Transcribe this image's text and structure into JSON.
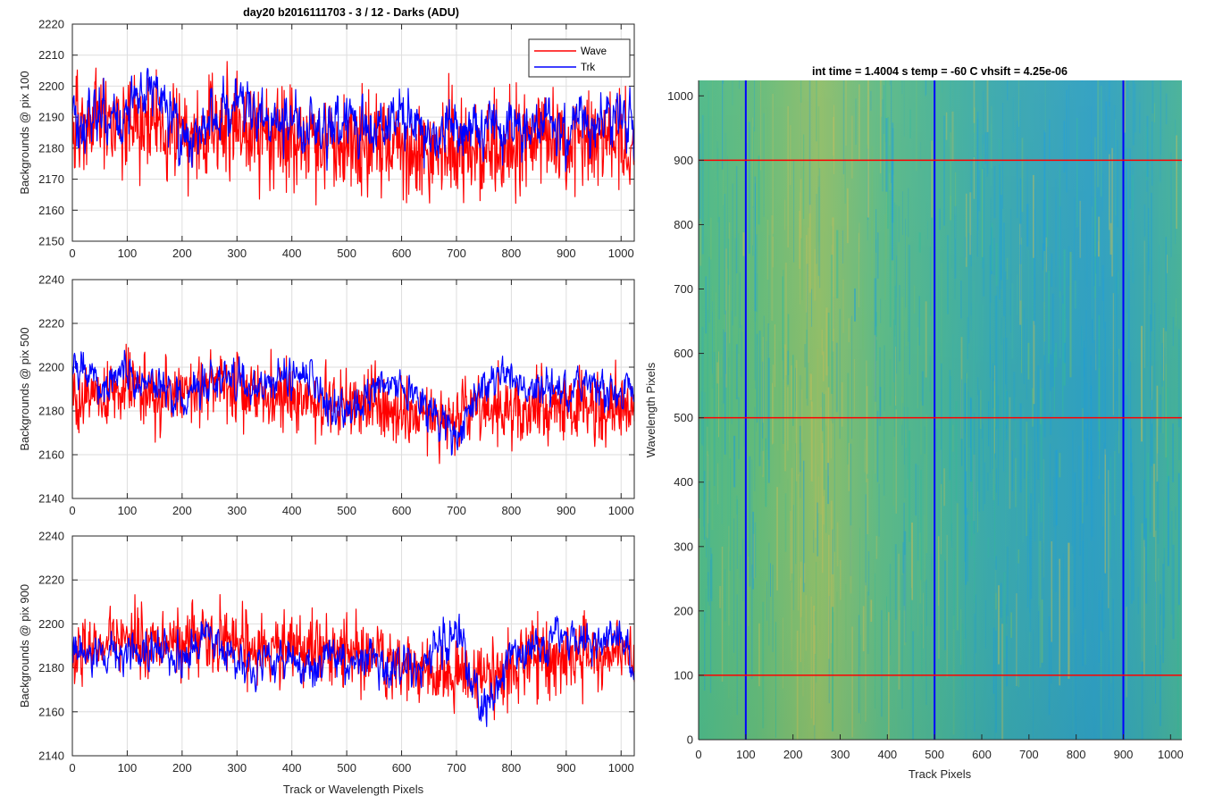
{
  "figure": {
    "title": "day20 b2016111703 - 3 / 12 - Darks (ADU)"
  },
  "chart_data": [
    {
      "type": "line",
      "ylabel": "Backgrounds @ pix 100",
      "xlabel": "",
      "xlim": [
        0,
        1024
      ],
      "ylim": [
        2150,
        2220
      ],
      "xticks": [
        "0",
        "100",
        "200",
        "300",
        "400",
        "500",
        "600",
        "700",
        "800",
        "900",
        "1000"
      ],
      "yticks": [
        "2150",
        "2160",
        "2170",
        "2180",
        "2190",
        "2200",
        "2210",
        "2220"
      ],
      "grid": true,
      "legend": {
        "placement": "top-right",
        "entries": [
          "Wave",
          "Trk"
        ]
      },
      "series": [
        {
          "name": "Wave",
          "color": "#ff0000",
          "x": [
            0,
            50,
            100,
            150,
            200,
            250,
            300,
            350,
            400,
            450,
            500,
            550,
            600,
            650,
            700,
            750,
            800,
            850,
            900,
            950,
            1000,
            1024
          ],
          "values": [
            2186,
            2189,
            2188,
            2187,
            2183,
            2184,
            2185,
            2183,
            2182,
            2181,
            2182,
            2181,
            2180,
            2180,
            2179,
            2178,
            2180,
            2182,
            2183,
            2182,
            2182,
            2181
          ]
        },
        {
          "name": "Trk",
          "color": "#0000ff",
          "x": [
            0,
            50,
            100,
            150,
            200,
            250,
            300,
            350,
            400,
            450,
            500,
            550,
            600,
            650,
            700,
            750,
            800,
            850,
            900,
            950,
            1000,
            1024
          ],
          "values": [
            2190,
            2188,
            2192,
            2200,
            2182,
            2188,
            2198,
            2188,
            2187,
            2186,
            2187,
            2185,
            2188,
            2184,
            2186,
            2190,
            2186,
            2190,
            2186,
            2190,
            2190,
            2188
          ]
        }
      ]
    },
    {
      "type": "line",
      "ylabel": "Backgrounds @ pix 500",
      "xlabel": "",
      "xlim": [
        0,
        1024
      ],
      "ylim": [
        2140,
        2240
      ],
      "xticks": [
        "0",
        "100",
        "200",
        "300",
        "400",
        "500",
        "600",
        "700",
        "800",
        "900",
        "1000"
      ],
      "yticks": [
        "2140",
        "2160",
        "2180",
        "2200",
        "2220",
        "2240"
      ],
      "grid": true,
      "series": [
        {
          "name": "Wave",
          "color": "#ff0000",
          "x": [
            0,
            50,
            100,
            150,
            200,
            250,
            300,
            350,
            400,
            450,
            500,
            550,
            600,
            650,
            700,
            750,
            800,
            850,
            900,
            950,
            1000,
            1024
          ],
          "values": [
            2186,
            2186,
            2190,
            2188,
            2190,
            2192,
            2190,
            2188,
            2185,
            2183,
            2184,
            2182,
            2180,
            2178,
            2178,
            2180,
            2180,
            2181,
            2182,
            2182,
            2182,
            2183
          ]
        },
        {
          "name": "Trk",
          "color": "#0000ff",
          "x": [
            0,
            50,
            100,
            150,
            200,
            250,
            300,
            350,
            400,
            450,
            500,
            550,
            600,
            650,
            700,
            750,
            800,
            850,
            900,
            950,
            1000,
            1024
          ],
          "values": [
            2205,
            2188,
            2197,
            2192,
            2186,
            2194,
            2192,
            2190,
            2198,
            2188,
            2178,
            2188,
            2195,
            2183,
            2165,
            2192,
            2196,
            2188,
            2190,
            2194,
            2188,
            2192
          ]
        }
      ]
    },
    {
      "type": "line",
      "ylabel": "Backgrounds @ pix 900",
      "xlabel": "Track or Wavelength Pixels",
      "xlim": [
        0,
        1024
      ],
      "ylim": [
        2140,
        2240
      ],
      "xticks": [
        "0",
        "100",
        "200",
        "300",
        "400",
        "500",
        "600",
        "700",
        "800",
        "900",
        "1000"
      ],
      "yticks": [
        "2140",
        "2160",
        "2180",
        "2200",
        "2220",
        "2240"
      ],
      "grid": true,
      "series": [
        {
          "name": "Wave",
          "color": "#ff0000",
          "x": [
            0,
            50,
            100,
            150,
            200,
            250,
            300,
            350,
            400,
            450,
            500,
            550,
            600,
            650,
            700,
            750,
            800,
            850,
            900,
            950,
            1000,
            1024
          ],
          "values": [
            2187,
            2190,
            2192,
            2191,
            2192,
            2192,
            2190,
            2189,
            2188,
            2188,
            2187,
            2184,
            2182,
            2180,
            2178,
            2175,
            2180,
            2183,
            2185,
            2185,
            2186,
            2185
          ]
        },
        {
          "name": "Trk",
          "color": "#0000ff",
          "x": [
            0,
            50,
            100,
            150,
            200,
            250,
            300,
            350,
            400,
            450,
            500,
            550,
            600,
            650,
            700,
            750,
            800,
            850,
            900,
            950,
            1000,
            1024
          ],
          "values": [
            2185,
            2186,
            2186,
            2190,
            2182,
            2196,
            2180,
            2182,
            2183,
            2184,
            2184,
            2182,
            2180,
            2185,
            2198,
            2160,
            2185,
            2188,
            2192,
            2190,
            2195,
            2180
          ]
        }
      ]
    },
    {
      "type": "heatmap",
      "title": "int time = 1.4004 s    temp = -60 C    vhsift = 4.25e-06",
      "xlabel": "Track Pixels",
      "ylabel": "Wavelength Pixels",
      "xlim": [
        0,
        1024
      ],
      "ylim": [
        0,
        1024
      ],
      "xticks": [
        "0",
        "100",
        "200",
        "300",
        "400",
        "500",
        "600",
        "700",
        "800",
        "900",
        "1000"
      ],
      "yticks": [
        "0",
        "100",
        "200",
        "300",
        "400",
        "500",
        "600",
        "700",
        "800",
        "900",
        "1000"
      ],
      "colors": {
        "low": "#1f9ed6",
        "mid": "#34b89a",
        "high": "#bdbd5a"
      },
      "marker_lines": {
        "vertical": {
          "x": [
            100,
            500,
            900
          ],
          "color": "#0000ff"
        },
        "horizontal": {
          "y": [
            100,
            500,
            900
          ],
          "color": "#ff0000"
        }
      }
    }
  ]
}
